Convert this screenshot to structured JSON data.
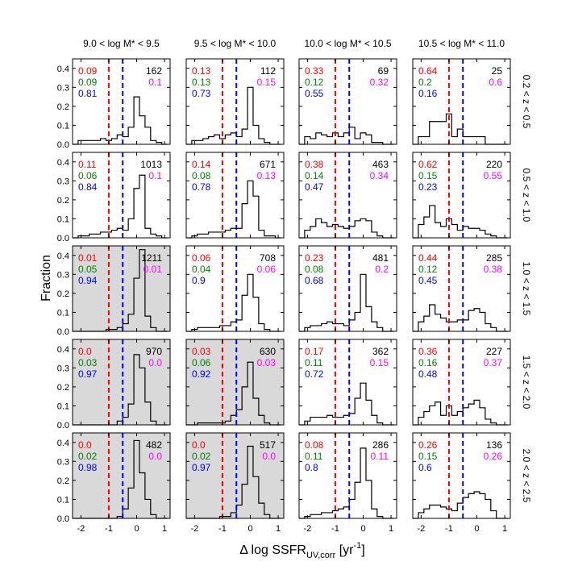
{
  "figure": {
    "ylabel": "Fraction",
    "xlabel_prefix": "Δ log SSFR",
    "xlabel_sub": "UV,corr",
    "xlabel_unit_pre": " [yr",
    "xlabel_unit_sup": "-1",
    "xlabel_unit_post": "]",
    "colors": {
      "red": "#ff0000",
      "green": "#008000",
      "blue": "#0000ff",
      "magenta": "#ff00ff",
      "shade": "#d9d9d9"
    }
  },
  "chart_data": {
    "type": "histogram_grid",
    "mass_bins": [
      "9.0 < log M* < 9.5",
      "9.5 < log M* < 10.0",
      "10.0 < log M* < 10.5",
      "10.5 < log M* < 11.0"
    ],
    "z_bins": [
      "0.2 < z < 0.5",
      "0.5 < z < 1.0",
      "1.0 < z < 1.5",
      "1.5 < z < 2.0",
      "2.0 < z < 2.5"
    ],
    "xlim": [
      -2.3,
      1.2
    ],
    "ylim": [
      0,
      0.45
    ],
    "x_ticks": [
      "-2",
      "-1",
      "0",
      "1"
    ],
    "y_ticks": [
      "0.0",
      "0.1",
      "0.2",
      "0.3",
      "0.4"
    ],
    "red_line_x": -1.0,
    "blue_line_x": -0.5,
    "bin_edges": [
      -2.3,
      -2.1,
      -1.9,
      -1.7,
      -1.5,
      -1.3,
      -1.1,
      -0.9,
      -0.7,
      -0.5,
      -0.3,
      -0.1,
      0.1,
      0.3,
      0.5,
      0.7,
      0.9,
      1.1
    ],
    "panels": [
      [
        {
          "n": "162",
          "red": "0.09",
          "green": "0.09",
          "blue": "0.81",
          "magenta": "0.1",
          "shaded": false,
          "values": [
            0,
            0.02,
            0.02,
            0.02,
            0.02,
            0.03,
            0.02,
            0.03,
            0.05,
            0.04,
            0.09,
            0.25,
            0.15,
            0.09,
            0.02,
            0.01,
            0
          ]
        },
        {
          "n": "112",
          "red": "0.13",
          "green": "0.13",
          "blue": "0.73",
          "magenta": "0.15",
          "shaded": false,
          "values": [
            0,
            0.02,
            0.02,
            0.03,
            0.04,
            0.05,
            0.03,
            0.05,
            0.06,
            0.04,
            0.08,
            0.3,
            0.1,
            0.03,
            0.01,
            0,
            0
          ]
        },
        {
          "n": "69",
          "red": "0.33",
          "green": "0.12",
          "blue": "0.55",
          "magenta": "0.32",
          "shaded": false,
          "values": [
            0,
            0.04,
            0.03,
            0.06,
            0.05,
            0.04,
            0.06,
            0.04,
            0.06,
            0.09,
            0.03,
            0.06,
            0.05,
            0.01,
            0.01,
            0,
            0
          ]
        },
        {
          "n": "25",
          "red": "0.64",
          "green": "0.2",
          "blue": "0.16",
          "magenta": "0.6",
          "shaded": false,
          "values": [
            0,
            0.04,
            0.04,
            0.12,
            0.12,
            0.12,
            0.16,
            0.04,
            0.08,
            0.04,
            0.04,
            0.04,
            0.04,
            0,
            0,
            0,
            0
          ]
        }
      ],
      [
        {
          "n": "1013",
          "red": "0.11",
          "green": "0.06",
          "blue": "0.84",
          "magenta": "0.1",
          "shaded": false,
          "values": [
            0,
            0.01,
            0.01,
            0.02,
            0.02,
            0.03,
            0.03,
            0.04,
            0.05,
            0.04,
            0.1,
            0.26,
            0.33,
            0.05,
            0.02,
            0.01,
            0
          ]
        },
        {
          "n": "671",
          "red": "0.14",
          "green": "0.08",
          "blue": "0.78",
          "magenta": "0.13",
          "shaded": false,
          "values": [
            0,
            0.01,
            0.02,
            0.02,
            0.03,
            0.03,
            0.03,
            0.04,
            0.05,
            0.05,
            0.18,
            0.3,
            0.22,
            0.04,
            0.01,
            0.01,
            0
          ]
        },
        {
          "n": "463",
          "red": "0.38",
          "green": "0.14",
          "blue": "0.47",
          "magenta": "0.34",
          "shaded": false,
          "values": [
            0,
            0.04,
            0.06,
            0.1,
            0.08,
            0.06,
            0.07,
            0.06,
            0.05,
            0.06,
            0.09,
            0.1,
            0.09,
            0.03,
            0.01,
            0,
            0
          ]
        },
        {
          "n": "220",
          "red": "0.62",
          "green": "0.15",
          "blue": "0.23",
          "magenta": "0.55",
          "shaded": false,
          "values": [
            0,
            0.07,
            0.11,
            0.17,
            0.08,
            0.06,
            0.1,
            0.07,
            0.04,
            0.06,
            0.05,
            0.05,
            0.04,
            0.02,
            0.01,
            0,
            0
          ]
        }
      ],
      [
        {
          "n": "1211",
          "red": "0.01",
          "green": "0.05",
          "blue": "0.94",
          "magenta": "0.01",
          "shaded": true,
          "values": [
            0,
            0,
            0,
            0,
            0,
            0,
            0.01,
            0.01,
            0.02,
            0.04,
            0.09,
            0.28,
            0.43,
            0.08,
            0.02,
            0,
            0
          ]
        },
        {
          "n": "708",
          "red": "0.06",
          "green": "0.04",
          "blue": "0.9",
          "magenta": "0.06",
          "shaded": false,
          "values": [
            0,
            0.01,
            0.02,
            0.02,
            0.02,
            0.02,
            0.03,
            0.03,
            0.05,
            0.06,
            0.19,
            0.3,
            0.18,
            0.04,
            0.01,
            0,
            0
          ]
        },
        {
          "n": "481",
          "red": "0.23",
          "green": "0.08",
          "blue": "0.68",
          "magenta": "0.2",
          "shaded": false,
          "values": [
            0,
            0.02,
            0.03,
            0.03,
            0.04,
            0.05,
            0.04,
            0.04,
            0.03,
            0.06,
            0.1,
            0.3,
            0.13,
            0.05,
            0.02,
            0,
            0
          ]
        },
        {
          "n": "285",
          "red": "0.44",
          "green": "0.12",
          "blue": "0.45",
          "magenta": "0.38",
          "shaded": false,
          "values": [
            0,
            0.05,
            0.08,
            0.14,
            0.09,
            0.07,
            0.05,
            0.05,
            0.06,
            0.06,
            0.11,
            0.12,
            0.1,
            0.04,
            0.02,
            0,
            0
          ]
        }
      ],
      [
        {
          "n": "970",
          "red": "0.0",
          "green": "0.03",
          "blue": "0.97",
          "magenta": "0.0",
          "shaded": true,
          "values": [
            0,
            0,
            0,
            0,
            0,
            0,
            0,
            0,
            0.02,
            0.04,
            0.11,
            0.37,
            0.3,
            0.12,
            0.02,
            0,
            0
          ]
        },
        {
          "n": "630",
          "red": "0.03",
          "green": "0.06",
          "blue": "0.92",
          "magenta": "0.03",
          "shaded": true,
          "values": [
            0,
            0,
            0.01,
            0.01,
            0.01,
            0.01,
            0.01,
            0.02,
            0.05,
            0.08,
            0.2,
            0.33,
            0.14,
            0.05,
            0.01,
            0,
            0
          ]
        },
        {
          "n": "362",
          "red": "0.17",
          "green": "0.11",
          "blue": "0.72",
          "magenta": "0.15",
          "shaded": false,
          "values": [
            0,
            0.02,
            0.04,
            0.04,
            0.04,
            0.05,
            0.04,
            0.04,
            0.05,
            0.06,
            0.14,
            0.22,
            0.13,
            0.05,
            0.01,
            0,
            0
          ]
        },
        {
          "n": "227",
          "red": "0.36",
          "green": "0.16",
          "blue": "0.48",
          "magenta": "0.37",
          "shaded": false,
          "values": [
            0,
            0.04,
            0.07,
            0.1,
            0.12,
            0.05,
            0.1,
            0.05,
            0.07,
            0.09,
            0.11,
            0.13,
            0.09,
            0.03,
            0.01,
            0,
            0
          ]
        }
      ],
      [
        {
          "n": "482",
          "red": "0.0",
          "green": "0.02",
          "blue": "0.98",
          "magenta": "0.0",
          "shaded": true,
          "values": [
            0,
            0,
            0,
            0,
            0,
            0,
            0,
            0,
            0.01,
            0.05,
            0.16,
            0.41,
            0.24,
            0.1,
            0.02,
            0,
            0
          ]
        },
        {
          "n": "517",
          "red": "0.0",
          "green": "0.02",
          "blue": "0.97",
          "magenta": "0.0",
          "shaded": true,
          "values": [
            0,
            0,
            0,
            0,
            0,
            0,
            0.01,
            0.01,
            0.03,
            0.07,
            0.18,
            0.38,
            0.22,
            0.08,
            0.02,
            0,
            0
          ]
        },
        {
          "n": "286",
          "red": "0.08",
          "green": "0.11",
          "blue": "0.8",
          "magenta": "0.11",
          "shaded": false,
          "values": [
            0,
            0.01,
            0.02,
            0.02,
            0.03,
            0.03,
            0.04,
            0.05,
            0.06,
            0.1,
            0.19,
            0.37,
            0.2,
            0.05,
            0.01,
            0,
            0
          ]
        },
        {
          "n": "136",
          "red": "0.26",
          "green": "0.15",
          "blue": "0.6",
          "magenta": "0.26",
          "shaded": false,
          "values": [
            0,
            0.03,
            0.05,
            0.07,
            0.07,
            0.06,
            0.05,
            0.04,
            0.08,
            0.11,
            0.13,
            0.14,
            0.13,
            0.1,
            0.04,
            0,
            0
          ]
        }
      ]
    ]
  }
}
